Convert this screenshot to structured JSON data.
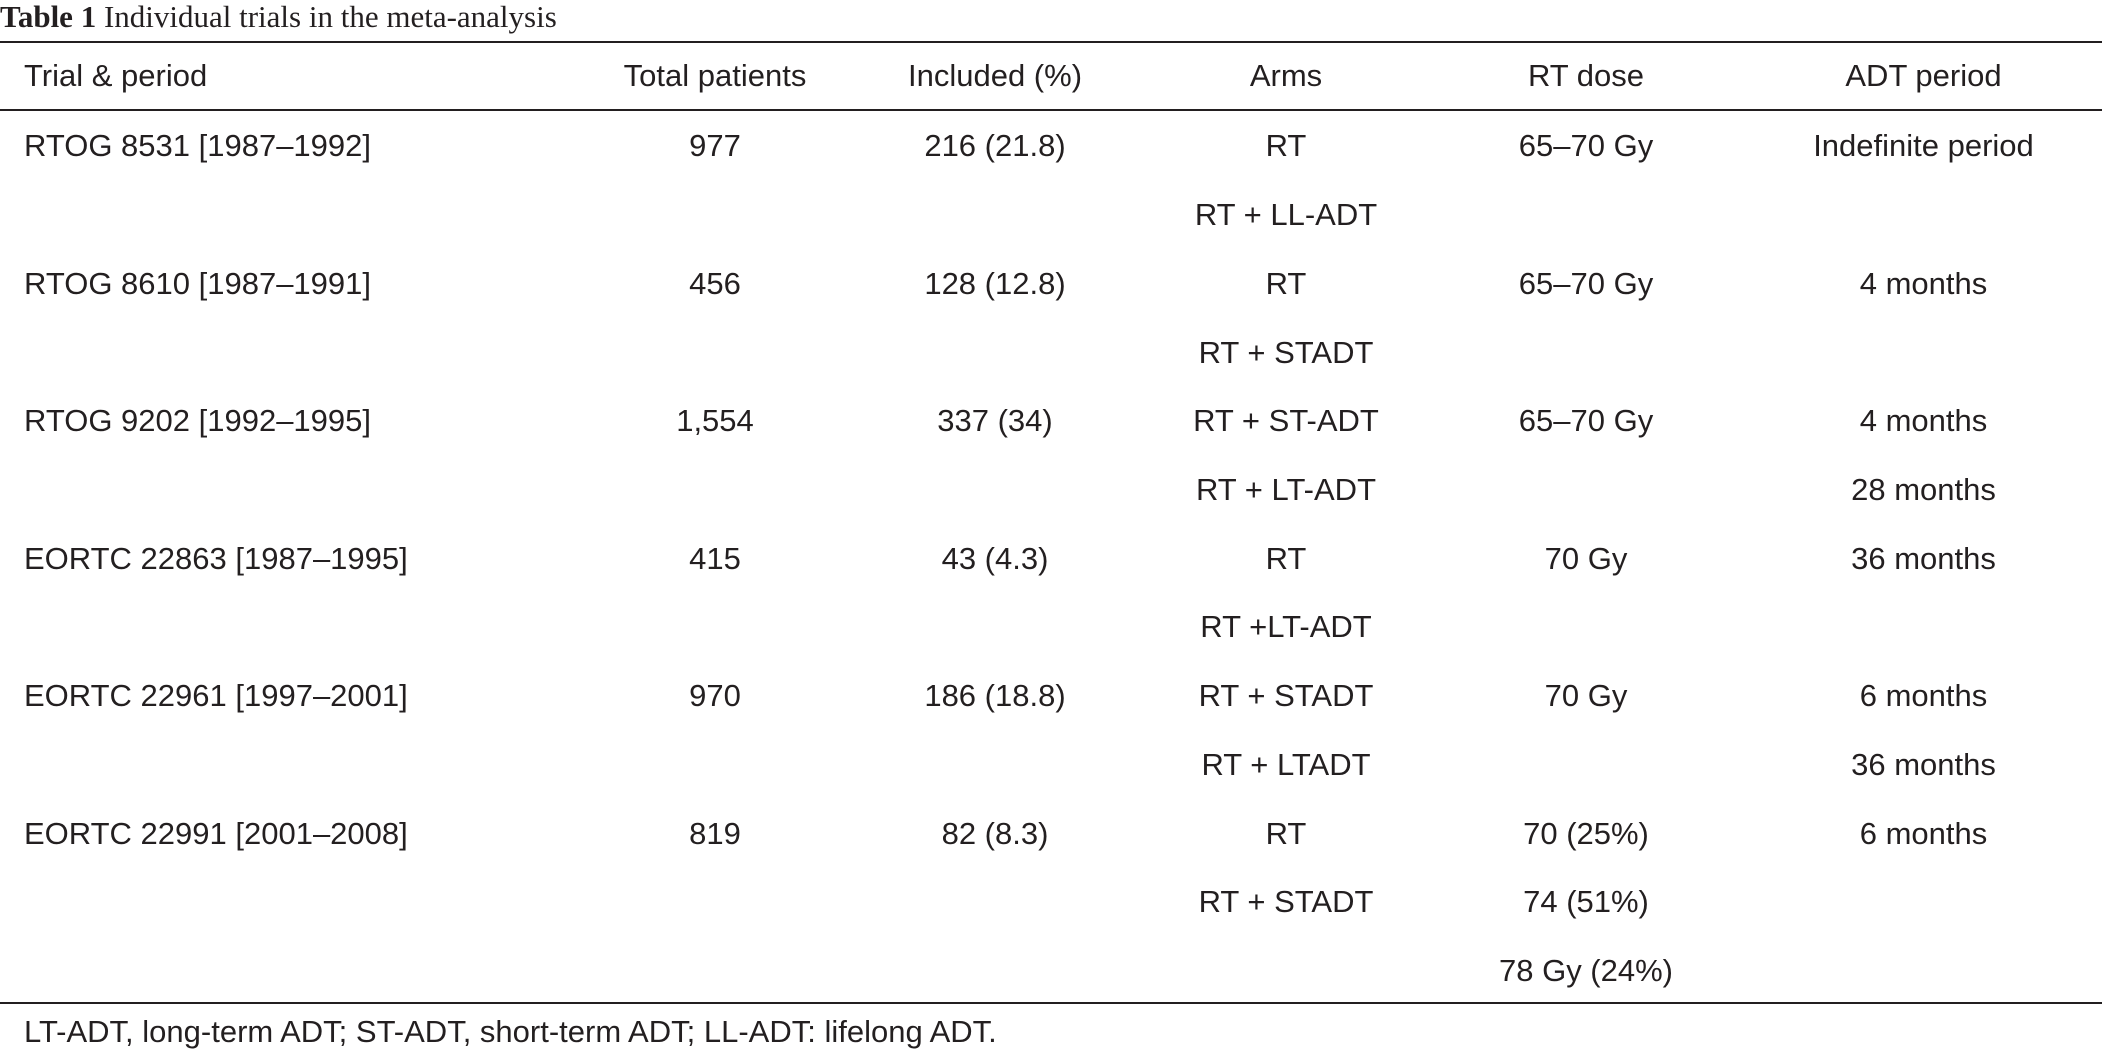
{
  "caption": {
    "label": "Table 1",
    "title": "Individual trials in the meta-analysis"
  },
  "columns": [
    "Trial & period",
    "Total patients",
    "Included (%)",
    "Arms",
    "RT dose",
    "ADT period"
  ],
  "rows": [
    [
      "RTOG 8531 [1987–1992]",
      "977",
      "216 (21.8)",
      "RT",
      "65–70 Gy",
      "Indefinite period"
    ],
    [
      "",
      "",
      "",
      "RT + LL-ADT",
      "",
      ""
    ],
    [
      "RTOG 8610 [1987–1991]",
      "456",
      "128 (12.8)",
      "RT",
      "65–70 Gy",
      "4 months"
    ],
    [
      "",
      "",
      "",
      "RT + STADT",
      "",
      ""
    ],
    [
      "RTOG 9202 [1992–1995]",
      "1,554",
      "337 (34)",
      "RT + ST-ADT",
      "65–70 Gy",
      "4 months"
    ],
    [
      "",
      "",
      "",
      "RT + LT-ADT",
      "",
      "28 months"
    ],
    [
      "EORTC 22863 [1987–1995]",
      "415",
      "43 (4.3)",
      "RT",
      "70 Gy",
      "36 months"
    ],
    [
      "",
      "",
      "",
      "RT +LT-ADT",
      "",
      ""
    ],
    [
      "EORTC 22961 [1997–2001]",
      "970",
      "186 (18.8)",
      "RT + STADT",
      "70 Gy",
      "6 months"
    ],
    [
      "",
      "",
      "",
      "RT + LTADT",
      "",
      "36 months"
    ],
    [
      "EORTC 22991 [2001–2008]",
      "819",
      "82 (8.3)",
      "RT",
      "70 (25%)",
      "6 months"
    ],
    [
      "",
      "",
      "",
      "RT + STADT",
      "74 (51%)",
      ""
    ],
    [
      "",
      "",
      "",
      "",
      "78 Gy (24%)",
      ""
    ]
  ],
  "footnote": "LT-ADT, long-term ADT; ST-ADT, short-term ADT; LL-ADT: lifelong ADT."
}
